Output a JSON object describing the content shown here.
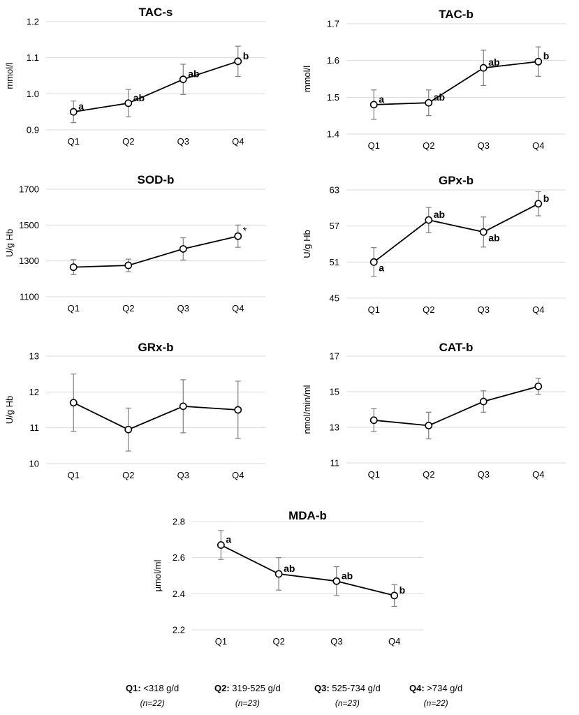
{
  "chart_data": [
    {
      "type": "line",
      "title": "TAC-s",
      "ylabel": "mmol/l",
      "categories": [
        "Q1",
        "Q2",
        "Q3",
        "Q4"
      ],
      "values": [
        0.95,
        0.974,
        1.04,
        1.09
      ],
      "errors": [
        0.03,
        0.038,
        0.042,
        0.042
      ],
      "annotations": [
        "a",
        "ab",
        "ab",
        "b"
      ],
      "ylim": [
        0.9,
        1.2
      ],
      "yticks": [
        "0.9",
        "1.0",
        "1.1",
        "1.2"
      ],
      "grid": true
    },
    {
      "type": "line",
      "title": "TAC-b",
      "ylabel": "mmol/l",
      "categories": [
        "Q1",
        "Q2",
        "Q3",
        "Q4"
      ],
      "values": [
        1.48,
        1.485,
        1.58,
        1.597
      ],
      "errors": [
        0.04,
        0.035,
        0.048,
        0.04
      ],
      "annotations": [
        "a",
        "ab",
        "ab",
        "b"
      ],
      "ylim": [
        1.4,
        1.7
      ],
      "yticks": [
        "1.4",
        "1.5",
        "1.6",
        "1.7"
      ],
      "grid": true
    },
    {
      "type": "line",
      "title": "SOD-b",
      "ylabel": "U/g Hb",
      "categories": [
        "Q1",
        "Q2",
        "Q3",
        "Q4"
      ],
      "values": [
        1265,
        1275,
        1367,
        1438
      ],
      "errors": [
        42,
        35,
        62,
        62
      ],
      "annotations": [
        "",
        "",
        "",
        "*"
      ],
      "ylim": [
        1100,
        1700
      ],
      "yticks": [
        "1100",
        "1300",
        "1500",
        "1700"
      ],
      "grid": true
    },
    {
      "type": "line",
      "title": "GPx-b",
      "ylabel": "U/g Hb",
      "categories": [
        "Q1",
        "Q2",
        "Q3",
        "Q4"
      ],
      "values": [
        51,
        58,
        56,
        60.7
      ],
      "errors": [
        2.4,
        2.1,
        2.5,
        2
      ],
      "annotations": [
        "a",
        "ab",
        "ab",
        "b"
      ],
      "ylim": [
        45,
        63
      ],
      "yticks": [
        "45",
        "51",
        "57",
        "63"
      ],
      "grid": true
    },
    {
      "type": "line",
      "title": "GRx-b",
      "ylabel": "U/g Hb",
      "categories": [
        "Q1",
        "Q2",
        "Q3",
        "Q4"
      ],
      "values": [
        11.7,
        10.95,
        11.6,
        11.5
      ],
      "errors": [
        0.8,
        0.6,
        0.74,
        0.8
      ],
      "annotations": [
        "",
        "",
        "",
        ""
      ],
      "ylim": [
        10,
        13
      ],
      "yticks": [
        "10",
        "11",
        "12",
        "13"
      ],
      "grid": true
    },
    {
      "type": "line",
      "title": "CAT-b",
      "ylabel": "nmol/min/ml",
      "categories": [
        "Q1",
        "Q2",
        "Q3",
        "Q4"
      ],
      "values": [
        13.4,
        13.1,
        14.45,
        15.3
      ],
      "errors": [
        0.65,
        0.75,
        0.6,
        0.45
      ],
      "annotations": [
        "",
        "",
        "",
        ""
      ],
      "ylim": [
        11,
        17
      ],
      "yticks": [
        "11",
        "13",
        "15",
        "17"
      ],
      "grid": true
    },
    {
      "type": "line",
      "title": "MDA-b",
      "ylabel": "µmol/ml",
      "categories": [
        "Q1",
        "Q2",
        "Q3",
        "Q4"
      ],
      "values": [
        2.67,
        2.51,
        2.47,
        2.39
      ],
      "errors": [
        0.08,
        0.09,
        0.08,
        0.06
      ],
      "annotations": [
        "a",
        "ab",
        "ab",
        "b"
      ],
      "ylim": [
        2.2,
        2.8
      ],
      "yticks": [
        "2.2",
        "2.4",
        "2.6",
        "2.8"
      ],
      "grid": true
    }
  ],
  "legend": [
    {
      "label": "Q1:",
      "range": " <318 g/d",
      "n": "(n=22)"
    },
    {
      "label": "Q2:",
      "range": " 319-525 g/d",
      "n": "(n=23)"
    },
    {
      "label": "Q3:",
      "range": " 525-734 g/d",
      "n": "(n=23)"
    },
    {
      "label": "Q4:",
      "range": " >734 g/d",
      "n": "(n=22)"
    }
  ]
}
